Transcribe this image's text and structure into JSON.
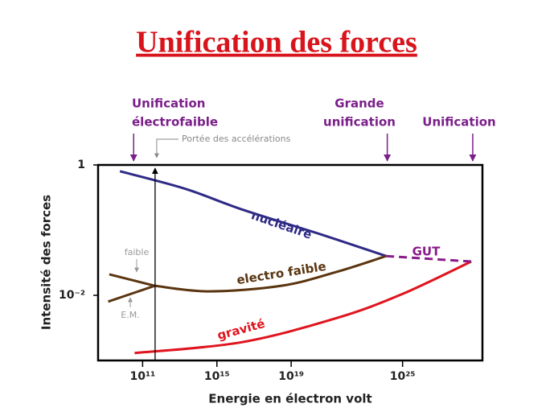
{
  "chart_data": {
    "type": "line",
    "title": "Unification des forces",
    "xlabel": "Energie en électron volt",
    "ylabel": "Intensité des forces",
    "xscale": "log",
    "yscale": "log",
    "xlim": [
      400000000.0,
      2e+29
    ],
    "ylim": [
      0.001,
      1
    ],
    "xticks": [
      {
        "value": 100000000000.0,
        "label": "10¹¹"
      },
      {
        "value": 1000000000000000.0,
        "label": "10¹⁵"
      },
      {
        "value": 1e+19,
        "label": "10¹⁹"
      },
      {
        "value": 1e+25,
        "label": "10²⁵"
      }
    ],
    "yticks": [
      1,
      {
        "value": 0.01,
        "label": "10⁻²"
      }
    ],
    "series": [
      {
        "name": "nucléaire",
        "color": "#2e2a85",
        "x": [
          6000000000.0,
          20000000000000.0,
          2e+16,
          4.5e+20,
          1.3e+24
        ],
        "values": [
          0.8,
          0.43,
          0.21,
          0.085,
          0.04
        ]
      },
      {
        "name": "electro faible",
        "color": "#5a3510",
        "x": [
          450000000000.0,
          360000000000000.0,
          3e+18,
          3e+21,
          1.3e+24
        ],
        "values": [
          0.014,
          0.0115,
          0.014,
          0.023,
          0.04
        ]
      },
      {
        "name": "faible",
        "color": "#5a3510",
        "x": [
          1600000000.0,
          450000000000.0
        ],
        "values": [
          0.021,
          0.014
        ]
      },
      {
        "name": "E.M.",
        "color": "#5a3510",
        "x": [
          1400000000.0,
          450000000000.0
        ],
        "values": [
          0.008,
          0.014
        ]
      },
      {
        "name": "gravité",
        "color": "#e0141e",
        "x": [
          37000000000.0,
          2e+16,
          3e+21,
          1e+25,
          5e+28
        ],
        "values": [
          0.0013,
          0.0019,
          0.0045,
          0.0105,
          0.033
        ]
      },
      {
        "name": "GUT",
        "color": "#8a1a8a",
        "dashed": true,
        "x": [
          1.3e+24,
          5e+28
        ],
        "values": [
          0.04,
          0.033
        ]
      }
    ],
    "annotations": [
      {
        "text": [
          "Unification",
          "électrofaible"
        ],
        "x": 33000000000.0,
        "color": "#7b1f8a"
      },
      {
        "text": [
          "Portée des accélérations"
        ],
        "x": 470000000000.0,
        "color": "#888888"
      },
      {
        "text": [
          "Grande",
          "unification"
        ],
        "x": 1.5e+24,
        "color": "#7b1f8a"
      },
      {
        "text": [
          "Unification"
        ],
        "x": 6e+28,
        "color": "#7b1f8a"
      }
    ]
  }
}
